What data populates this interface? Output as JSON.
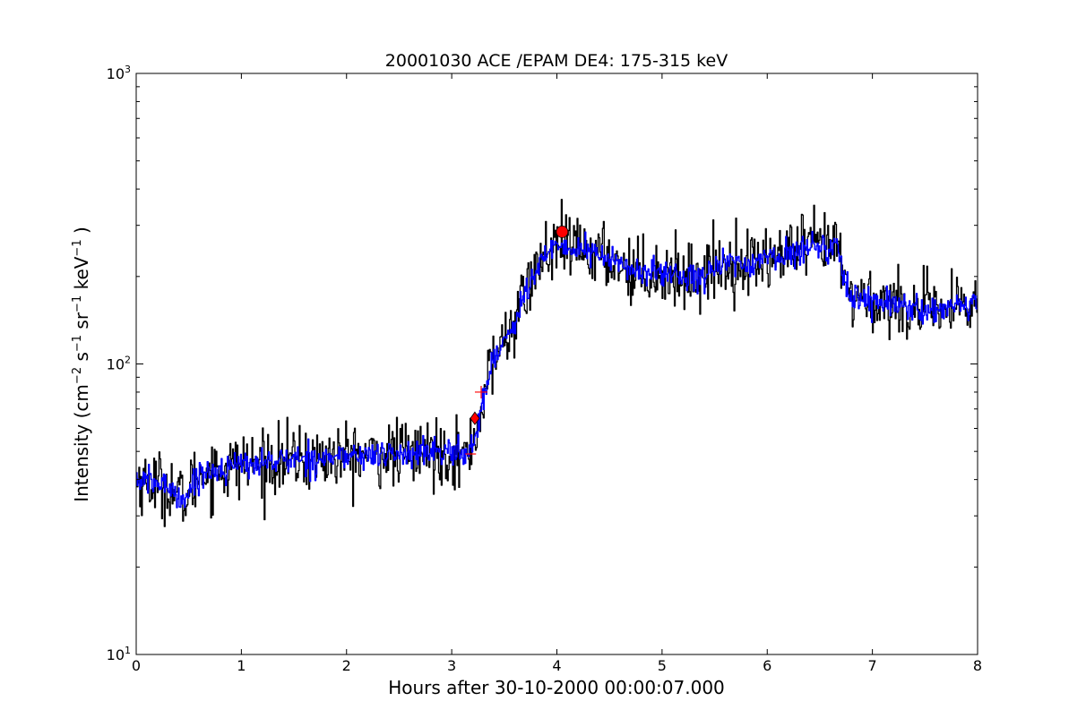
{
  "chart_data": {
    "type": "line",
    "title": "20001030 ACE /EPAM DE4: 175-315 keV",
    "xlabel": "Hours after 30-10-2000 00:00:07.000",
    "ylabel": {
      "base": "Intensity (cm",
      "sup1": "−2",
      "part2": " s",
      "sup2": "−1",
      "part3": " sr",
      "sup3": "−1",
      "part4": " keV",
      "sup4": "−1",
      "end": " )"
    },
    "xlim": [
      0,
      8
    ],
    "ylim": [
      10,
      1000
    ],
    "yscale": "log",
    "grid": false,
    "x_ticks": [
      "0",
      "1",
      "2",
      "3",
      "4",
      "5",
      "6",
      "7",
      "8"
    ],
    "y_ticks": [
      {
        "base": "10",
        "exp": "1",
        "value": 10
      },
      {
        "base": "10",
        "exp": "2",
        "value": 100
      },
      {
        "base": "10",
        "exp": "3",
        "value": 1000
      }
    ],
    "series": [
      {
        "role": "raw",
        "color": "#000000",
        "keypoints": [
          [
            0.0,
            40
          ],
          [
            0.3,
            38
          ],
          [
            0.45,
            34
          ],
          [
            0.6,
            42
          ],
          [
            1.0,
            45
          ],
          [
            1.5,
            47
          ],
          [
            2.0,
            48
          ],
          [
            2.5,
            49
          ],
          [
            3.0,
            50
          ],
          [
            3.15,
            48
          ],
          [
            3.2,
            55
          ],
          [
            3.25,
            62
          ],
          [
            3.3,
            78
          ],
          [
            3.4,
            105
          ],
          [
            3.55,
            130
          ],
          [
            3.7,
            175
          ],
          [
            3.85,
            230
          ],
          [
            4.0,
            250
          ],
          [
            4.2,
            250
          ],
          [
            4.5,
            230
          ],
          [
            4.7,
            210
          ],
          [
            5.0,
            205
          ],
          [
            5.3,
            200
          ],
          [
            5.6,
            220
          ],
          [
            5.9,
            225
          ],
          [
            6.2,
            240
          ],
          [
            6.5,
            255
          ],
          [
            6.68,
            250
          ],
          [
            6.75,
            175
          ],
          [
            7.0,
            165
          ],
          [
            7.3,
            160
          ],
          [
            7.6,
            150
          ],
          [
            8.0,
            160
          ]
        ],
        "noise_sigma": 0.13
      },
      {
        "role": "smoothed",
        "color": "#0000ff",
        "keypoints": [
          [
            0.0,
            40
          ],
          [
            0.3,
            38
          ],
          [
            0.45,
            34
          ],
          [
            0.6,
            42
          ],
          [
            1.0,
            45
          ],
          [
            1.5,
            47
          ],
          [
            2.0,
            48
          ],
          [
            2.5,
            49
          ],
          [
            3.0,
            50
          ],
          [
            3.15,
            48
          ],
          [
            3.2,
            55
          ],
          [
            3.25,
            62
          ],
          [
            3.3,
            78
          ],
          [
            3.4,
            105
          ],
          [
            3.55,
            130
          ],
          [
            3.7,
            175
          ],
          [
            3.85,
            230
          ],
          [
            4.0,
            250
          ],
          [
            4.2,
            250
          ],
          [
            4.5,
            230
          ],
          [
            4.7,
            210
          ],
          [
            5.0,
            205
          ],
          [
            5.3,
            200
          ],
          [
            5.6,
            220
          ],
          [
            5.9,
            225
          ],
          [
            6.2,
            240
          ],
          [
            6.5,
            255
          ],
          [
            6.68,
            250
          ],
          [
            6.75,
            175
          ],
          [
            7.0,
            165
          ],
          [
            7.3,
            160
          ],
          [
            7.6,
            150
          ],
          [
            8.0,
            160
          ]
        ],
        "noise_sigma": 0.055
      }
    ],
    "markers": [
      {
        "shape": "circle",
        "x": 4.05,
        "y": 285,
        "color": "#ff0000"
      },
      {
        "shape": "diamond",
        "x": 3.22,
        "y": 65,
        "color": "#ff0000"
      },
      {
        "shape": "plus",
        "x": 3.28,
        "y": 80,
        "color": "#ff0000"
      },
      {
        "shape": "hline",
        "x": 3.18,
        "y": 49,
        "color": "#ff0000"
      }
    ]
  }
}
